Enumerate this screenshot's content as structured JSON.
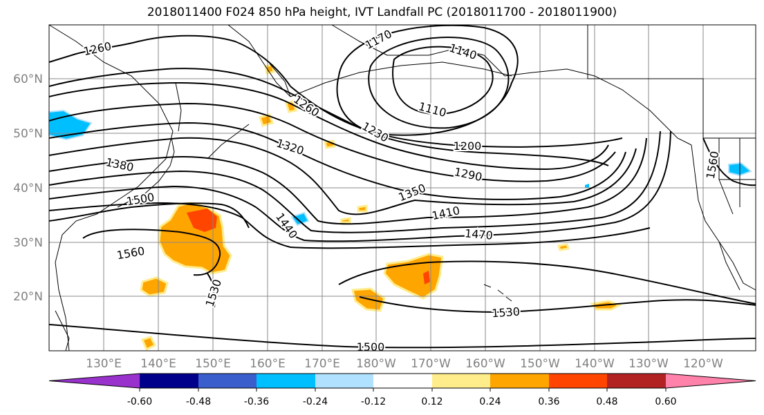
{
  "title": "2018011400 F024 850 hPa height, IVT Landfall PC (2018011700 - 2018011900)",
  "lat_labels": [
    "60°N",
    "50°N",
    "40°N",
    "30°N",
    "20°N"
  ],
  "lon_labels": [
    "130°E",
    "140°E",
    "150°E",
    "160°E",
    "170°E",
    "180°W",
    "170°W",
    "160°W",
    "150°W",
    "140°W",
    "130°W",
    "120°W"
  ],
  "contour_labels": [
    "1170",
    "1140",
    "1110",
    "1260",
    "1260",
    "1230",
    "1200",
    "1320",
    "1290",
    "1380",
    "1350",
    "1410",
    "1500",
    "1440",
    "1470",
    "1560",
    "1530",
    "1530",
    "1500",
    "1560"
  ],
  "colorbar": {
    "tick_labels": [
      "-0.60",
      "-0.48",
      "-0.36",
      "-0.24",
      "-0.12",
      "0.12",
      "0.24",
      "0.36",
      "0.48",
      "0.60"
    ],
    "colors": [
      "#9932cc",
      "#00008b",
      "#3a5fcd",
      "#00bfff",
      "#b0e2ff",
      "#ffffff",
      "#ffec8b",
      "#ffa500",
      "#ff4500",
      "#b22222",
      "#ff82ab"
    ]
  },
  "colors": {
    "contour": "#000000",
    "grid": "#888888",
    "axis_label": "#808080",
    "ivt_low": "#ffa500",
    "ivt_high": "#ff4500",
    "ivt_edge": "#ffec8b",
    "ivt_neg": "#00bfff"
  }
}
